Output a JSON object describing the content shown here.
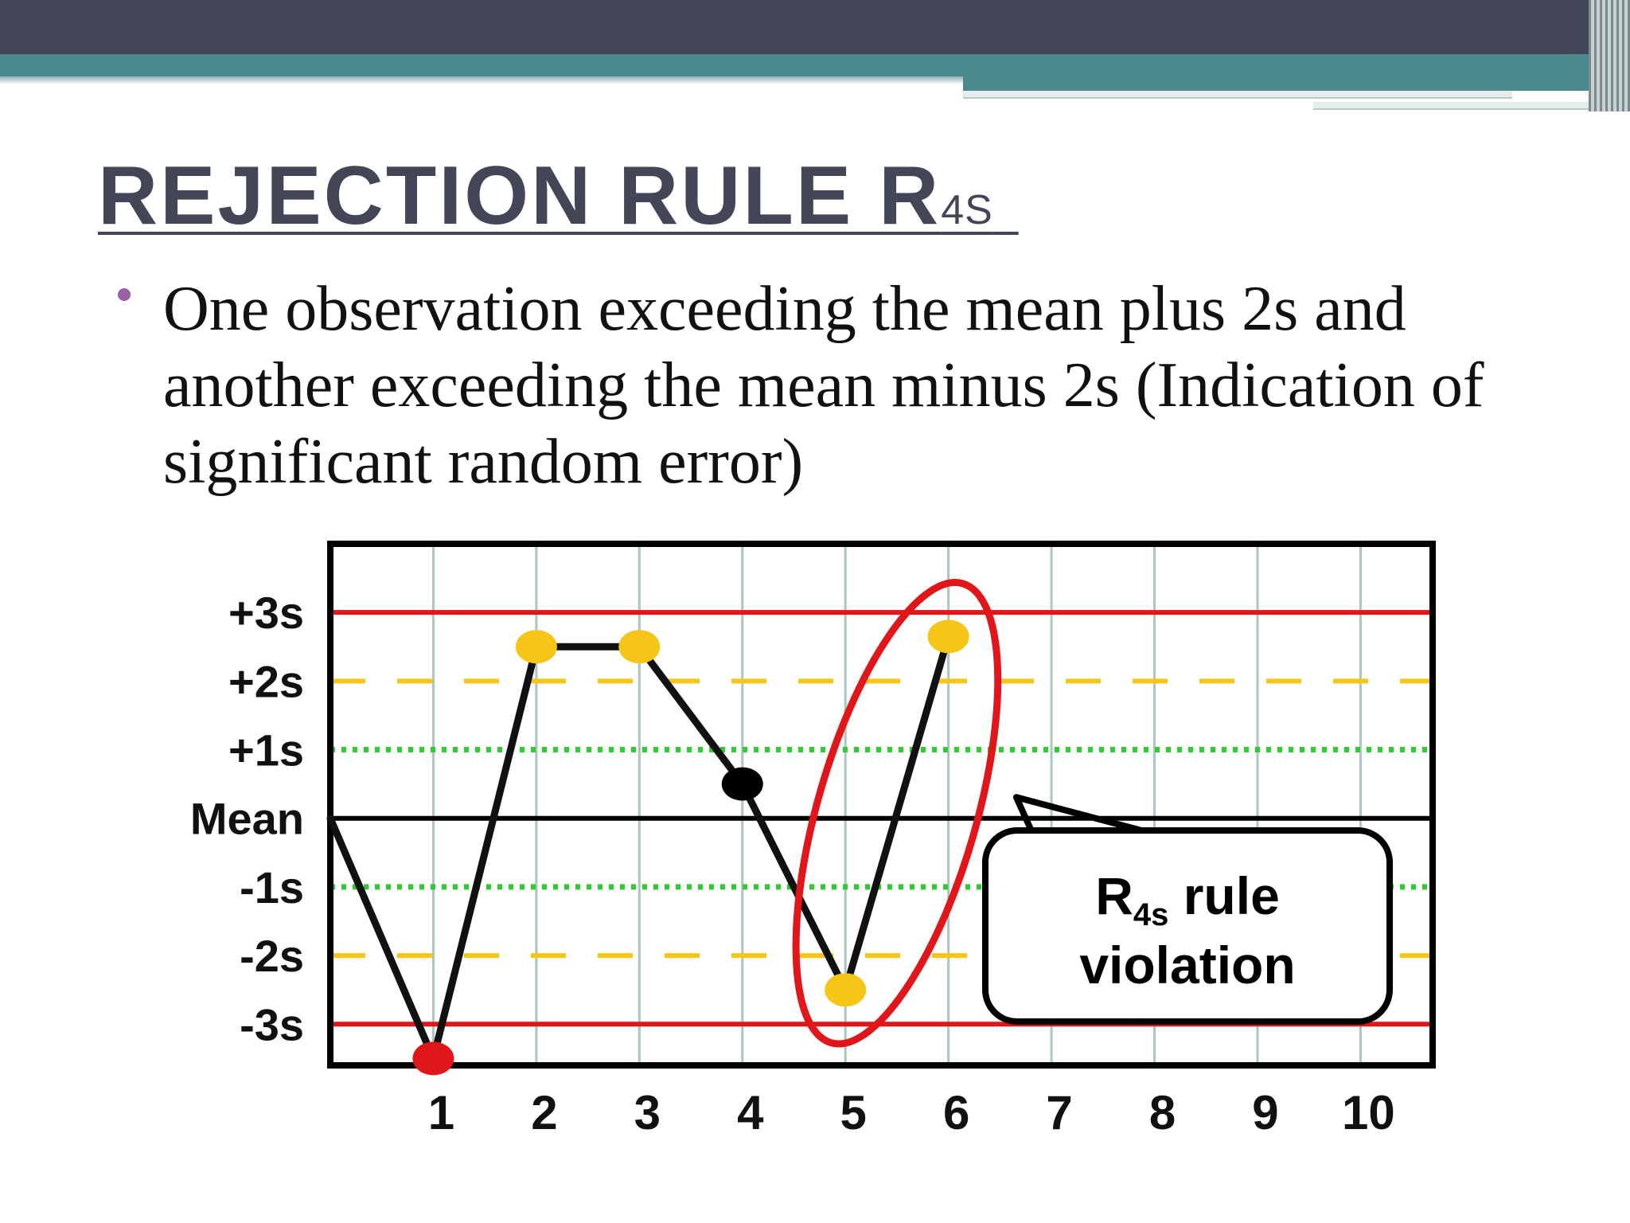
{
  "slide": {
    "title_main": "REJECTION RULE R",
    "title_sub": "4S",
    "bullet": "One observation exceeding the mean plus 2s and another exceeding the mean minus 2s (Indication of significant random error)"
  },
  "colors": {
    "header_dark": "#424557",
    "header_teal": "#4a8a8c",
    "title": "#434657",
    "bullet_dot": "#9b5fa8",
    "limit_3s": "#e0161b",
    "limit_2s": "#f5c518",
    "limit_1s": "#2ecc2e",
    "mean": "#000000",
    "ellipse": "#e0161b"
  },
  "chart_data": {
    "type": "line",
    "title": "",
    "xlabel": "",
    "ylabel": "",
    "ylim": [
      -3.6,
      4.0
    ],
    "xlim": [
      0,
      10.7
    ],
    "x_ticks": [
      "1",
      "2",
      "3",
      "4",
      "5",
      "6",
      "7",
      "8",
      "9",
      "10"
    ],
    "y_ticks": [
      {
        "label": "+3s",
        "value": 3
      },
      {
        "label": "+2s",
        "value": 2
      },
      {
        "label": "+1s",
        "value": 1
      },
      {
        "label": "Mean",
        "value": 0
      },
      {
        "label": "-1s",
        "value": -1
      },
      {
        "label": "-2s",
        "value": -2
      },
      {
        "label": "-3s",
        "value": -3
      }
    ],
    "control_lines": [
      {
        "value": 3,
        "style": "solid",
        "color": "#e0161b"
      },
      {
        "value": 2,
        "style": "dashed",
        "color": "#f5c518"
      },
      {
        "value": 1,
        "style": "dotted",
        "color": "#2ecc2e"
      },
      {
        "value": 0,
        "style": "solid",
        "color": "#000000"
      },
      {
        "value": -1,
        "style": "dotted",
        "color": "#2ecc2e"
      },
      {
        "value": -2,
        "style": "dashed",
        "color": "#f5c518"
      },
      {
        "value": -3,
        "style": "solid",
        "color": "#e0161b"
      }
    ],
    "line_start": {
      "x": 0,
      "y": 0
    },
    "series": [
      {
        "points": [
          {
            "x": 1,
            "y": -3.5,
            "color": "#e0161b"
          },
          {
            "x": 2,
            "y": 2.5,
            "color": "#f5c518"
          },
          {
            "x": 3,
            "y": 2.5,
            "color": "#f5c518"
          },
          {
            "x": 4,
            "y": 0.5,
            "color": "#000000"
          },
          {
            "x": 5,
            "y": -2.5,
            "color": "#f5c518"
          },
          {
            "x": 6,
            "y": 2.65,
            "color": "#f5c518"
          }
        ]
      }
    ],
    "annotation": {
      "highlight_points": [
        5,
        6
      ],
      "callout_line1_main": "R",
      "callout_line1_sub": "4s",
      "callout_line1_rest": " rule",
      "callout_line2": "violation"
    },
    "grid": true
  }
}
